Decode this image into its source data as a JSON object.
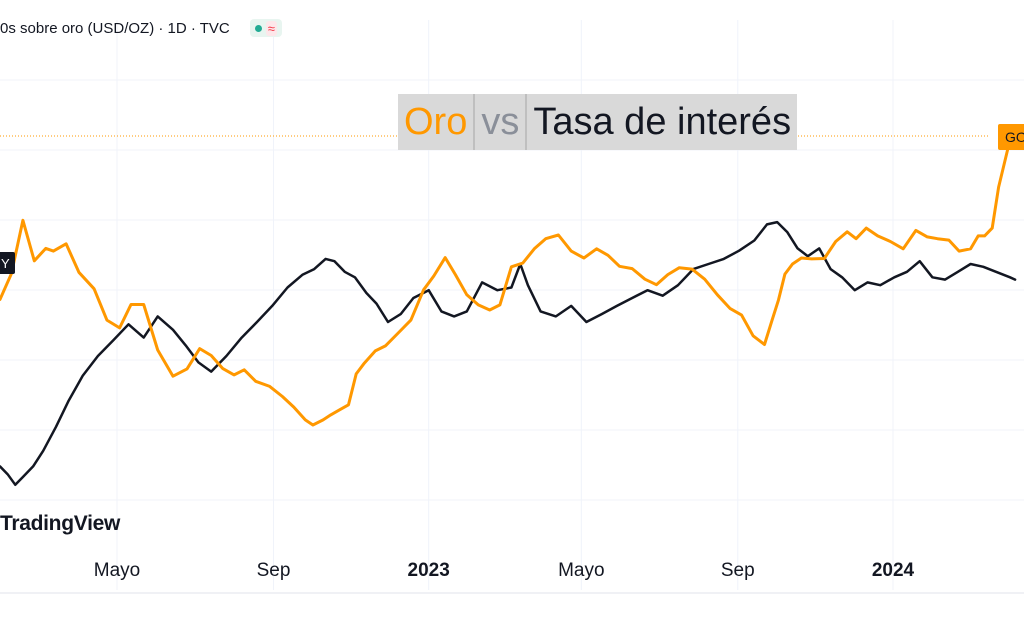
{
  "legend": {
    "text": "0s sobre oro (USD/OZ) · 1D · TVC",
    "badge_symbol": "≈"
  },
  "title": {
    "part1": "Oro",
    "part2": "vs",
    "part3": "Tasa de interés"
  },
  "watermark": "TradingView",
  "price_tag": "GO",
  "left_tag": "Y",
  "colors": {
    "gold": "#ff9800",
    "rate": "#131722",
    "grid": "#f0f3fa",
    "axis_text": "#131722",
    "title_bg": "#d9d9d9"
  },
  "chart_data": {
    "type": "line",
    "x_ticks": [
      {
        "label": "Mayo",
        "date": "2022-05-01",
        "bold": false
      },
      {
        "label": "Sep",
        "date": "2022-09-01",
        "bold": false
      },
      {
        "label": "2023",
        "date": "2023-01-01",
        "bold": true
      },
      {
        "label": "Mayo",
        "date": "2023-05-01",
        "bold": false
      },
      {
        "label": "Sep",
        "date": "2023-09-01",
        "bold": false
      },
      {
        "label": "2024",
        "date": "2024-01-01",
        "bold": true
      }
    ],
    "x_range": [
      "2022-01-29",
      "2024-04-13"
    ],
    "y_range": [
      0,
      100
    ],
    "grid": true,
    "legend": "top-left",
    "series": [
      {
        "key": "gold",
        "x": [
          "2022-01-29",
          "2022-02-07",
          "2022-02-16",
          "2022-02-25",
          "2022-03-06",
          "2022-03-12",
          "2022-03-22",
          "2022-04-01",
          "2022-04-13",
          "2022-04-23",
          "2022-05-03",
          "2022-05-12",
          "2022-05-22",
          "2022-06-02",
          "2022-06-14",
          "2022-06-25",
          "2022-07-05",
          "2022-07-14",
          "2022-07-23",
          "2022-08-01",
          "2022-08-09",
          "2022-08-18",
          "2022-08-29",
          "2022-09-08",
          "2022-09-17",
          "2022-09-26",
          "2022-10-02",
          "2022-10-10",
          "2022-10-16",
          "2022-10-23",
          "2022-10-30",
          "2022-11-05",
          "2022-11-11",
          "2022-11-20",
          "2022-11-28",
          "2022-12-08",
          "2022-12-18",
          "2022-12-28",
          "2023-01-05",
          "2023-01-14",
          "2023-01-22",
          "2023-01-31",
          "2023-02-09",
          "2023-02-18",
          "2023-02-26",
          "2023-03-07",
          "2023-03-16",
          "2023-03-25",
          "2023-04-03",
          "2023-04-13",
          "2023-04-23",
          "2023-05-03",
          "2023-05-13",
          "2023-05-22",
          "2023-05-31",
          "2023-06-10",
          "2023-06-20",
          "2023-06-29",
          "2023-07-08",
          "2023-07-17",
          "2023-07-27",
          "2023-08-06",
          "2023-08-16",
          "2023-08-26",
          "2023-09-04",
          "2023-09-13",
          "2023-09-22",
          "2023-09-28",
          "2023-10-03",
          "2023-10-08",
          "2023-10-14",
          "2023-10-21",
          "2023-10-29",
          "2023-11-08",
          "2023-11-17",
          "2023-11-26",
          "2023-12-03",
          "2023-12-11",
          "2023-12-20",
          "2023-12-30",
          "2024-01-09",
          "2024-01-19",
          "2024-01-28",
          "2024-02-05",
          "2024-02-14",
          "2024-02-22",
          "2024-03-02",
          "2024-03-08",
          "2024-03-13",
          "2024-03-19",
          "2024-03-24",
          "2024-04-02",
          "2024-04-06"
        ],
        "y": [
          52.3,
          57.9,
          69.5,
          60.7,
          63.4,
          62.8,
          64.4,
          58.2,
          54.6,
          47.8,
          46.1,
          51.2,
          51.2,
          41.3,
          35.6,
          37.2,
          41.6,
          40.1,
          37.3,
          35.9,
          37.0,
          34.5,
          33.4,
          31.2,
          28.9,
          26.1,
          25.0,
          26.1,
          27.2,
          28.3,
          29.4,
          36.1,
          38.3,
          41.1,
          42.2,
          45.0,
          47.8,
          54.4,
          57.4,
          61.4,
          57.7,
          53.3,
          51.1,
          50.0,
          51.1,
          59.4,
          60.2,
          63.3,
          65.5,
          66.3,
          62.8,
          61.3,
          63.3,
          61.9,
          59.5,
          59.0,
          56.7,
          55.5,
          57.7,
          59.2,
          58.9,
          56.7,
          53.3,
          50.3,
          48.9,
          44.4,
          42.5,
          47.8,
          52.2,
          57.8,
          60.0,
          61.3,
          61.1,
          61.2,
          64.9,
          67.0,
          65.5,
          67.8,
          66.1,
          64.9,
          63.3,
          67.3,
          65.9,
          65.5,
          65.2,
          62.8,
          63.3,
          66.1,
          66.1,
          67.8,
          76.7,
          87.0,
          88.1
        ]
      },
      {
        "key": "rate",
        "x": [
          "2022-01-29",
          "2022-02-04",
          "2022-02-10",
          "2022-02-16",
          "2022-02-24",
          "2022-03-04",
          "2022-03-14",
          "2022-03-24",
          "2022-04-04",
          "2022-04-16",
          "2022-04-28",
          "2022-05-10",
          "2022-05-22",
          "2022-06-02",
          "2022-06-14",
          "2022-06-24",
          "2022-07-04",
          "2022-07-14",
          "2022-07-26",
          "2022-08-07",
          "2022-08-19",
          "2022-08-31",
          "2022-09-12",
          "2022-09-24",
          "2022-10-03",
          "2022-10-12",
          "2022-10-19",
          "2022-10-27",
          "2022-11-04",
          "2022-11-13",
          "2022-11-21",
          "2022-11-30",
          "2022-12-10",
          "2022-12-20",
          "2023-01-01",
          "2023-01-11",
          "2023-01-21",
          "2023-01-31",
          "2023-02-12",
          "2023-02-24",
          "2023-03-07",
          "2023-03-14",
          "2023-03-20",
          "2023-03-30",
          "2023-04-11",
          "2023-04-23",
          "2023-05-05",
          "2023-05-17",
          "2023-05-29",
          "2023-06-10",
          "2023-06-22",
          "2023-07-04",
          "2023-07-16",
          "2023-07-28",
          "2023-08-09",
          "2023-08-21",
          "2023-09-02",
          "2023-09-14",
          "2023-09-24",
          "2023-10-02",
          "2023-10-10",
          "2023-10-18",
          "2023-10-26",
          "2023-11-04",
          "2023-11-13",
          "2023-11-22",
          "2023-12-02",
          "2023-12-12",
          "2023-12-22",
          "2024-01-02",
          "2024-01-12",
          "2024-01-22",
          "2024-02-01",
          "2024-02-11",
          "2024-02-21",
          "2024-03-02",
          "2024-03-12",
          "2024-03-22",
          "2024-04-02",
          "2024-04-06"
        ],
        "y": [
          16.0,
          14.3,
          12.0,
          13.7,
          16.0,
          19.4,
          24.6,
          30.3,
          35.7,
          40.0,
          43.4,
          46.9,
          44.0,
          48.6,
          45.7,
          42.3,
          38.6,
          36.6,
          40.0,
          44.0,
          47.4,
          50.9,
          54.9,
          57.7,
          58.9,
          61.1,
          60.6,
          58.3,
          57.1,
          53.7,
          51.4,
          47.4,
          49.1,
          52.6,
          54.3,
          49.7,
          48.6,
          49.7,
          56.0,
          54.3,
          54.9,
          60.0,
          55.4,
          49.7,
          48.6,
          50.9,
          47.4,
          49.1,
          50.9,
          52.6,
          54.3,
          53.1,
          55.4,
          58.9,
          60.0,
          61.1,
          62.9,
          65.1,
          68.6,
          69.1,
          66.9,
          63.4,
          61.7,
          63.4,
          58.9,
          57.1,
          54.3,
          56.0,
          55.4,
          57.1,
          58.3,
          60.6,
          57.1,
          56.6,
          58.3,
          60.0,
          59.4,
          58.3,
          57.1,
          56.6
        ]
      }
    ]
  }
}
